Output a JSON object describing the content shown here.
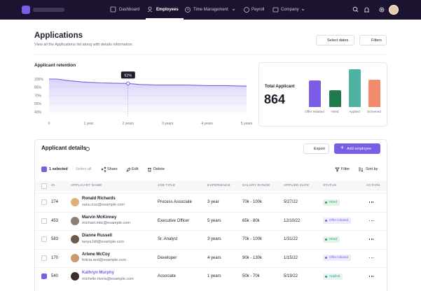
{
  "nav": {
    "items": [
      "Dashboard",
      "Employees",
      "Time Management",
      "Payroll",
      "Company"
    ]
  },
  "header": {
    "title": "Applications",
    "subtitle": "View all the Applications list along with details information.",
    "buttons": [
      "Select dates",
      "Filters"
    ]
  },
  "chart_data": [
    {
      "type": "line",
      "title": "Applicant retention",
      "color": "#7b5ce5",
      "x": [
        0,
        0.2,
        0.5,
        0.8,
        1,
        1.3,
        1.6,
        2,
        2.3,
        2.7,
        3,
        3.5,
        4,
        4.5,
        5
      ],
      "values": [
        100,
        100,
        97,
        95,
        94,
        93,
        92.5,
        92,
        90,
        89,
        89,
        89,
        88,
        88,
        87
      ],
      "xlim": [
        0,
        5
      ],
      "xticks": [
        0,
        {
          "value": 1,
          "label": "1 year"
        },
        {
          "value": 2,
          "label": "2 years"
        },
        {
          "value": 3,
          "label": "3 years"
        },
        {
          "value": 4,
          "label": "4 years"
        },
        {
          "value": 5,
          "label": "5 years"
        }
      ],
      "ylim": [
        40,
        100
      ],
      "yticks": [
        {
          "value": 100,
          "label": "100%"
        },
        {
          "value": 85,
          "label": "85%"
        },
        {
          "value": 70,
          "label": "70%"
        },
        {
          "value": 55,
          "label": "55%"
        },
        {
          "value": 40,
          "label": "40%"
        }
      ],
      "grid": true,
      "annotation": {
        "x": 2,
        "value": 92,
        "label": "92%"
      }
    },
    {
      "type": "bar",
      "title": "Total Applicant",
      "total": 864,
      "categories": [
        "Offer Initiated",
        "Hired",
        "Applied",
        "Screened"
      ],
      "values": [
        212,
        134,
        301,
        217
      ],
      "colors": [
        "#7b5ce5",
        "#1f7a4d",
        "#4fb3a3",
        "#f28b6b"
      ]
    }
  ],
  "table": {
    "title": "Applicant details",
    "buttons": [
      "Export",
      "Add employee"
    ],
    "toolbar": {
      "selected": "1 selected",
      "actions": [
        "Select all",
        "Share",
        "Edit",
        "Delete"
      ],
      "right": [
        "Filter",
        "Sort by"
      ]
    },
    "columns": [
      "ID",
      "APPLICANT NAME",
      "JOB TITLE",
      "EXPERIENCE",
      "SALARY RANGE",
      "APPLIED DATE",
      "STATUS",
      "ACTION"
    ],
    "rows": [
      {
        "id": 274,
        "name": "Ronald Richards",
        "email": "sara.cruz@example.com",
        "job": "Process Associate",
        "experience": "3 year",
        "salary": "70k - 100k",
        "date": "5/27/22",
        "status": "Hired",
        "status_color": "#1f9d55",
        "selected": false
      },
      {
        "id": 453,
        "name": "Marvin McKinney",
        "email": "michael.mitc@example.com",
        "job": "Executive Officer",
        "experience": "5 years",
        "salary": "65k - 80k",
        "date": "12/10/22",
        "status": "Offer initiated",
        "status_color": "#7b5ce5",
        "selected": false
      },
      {
        "id": 583,
        "name": "Dianne Russell",
        "email": "tanya.hill@example.com",
        "job": "Sr. Analyst",
        "experience": "3 years",
        "salary": "70k - 100k",
        "date": "1/31/22",
        "status": "Hired",
        "status_color": "#1f9d55",
        "selected": false
      },
      {
        "id": 170,
        "name": "Arlene McCoy",
        "email": "felicia.reid@example.com",
        "job": "Developer",
        "experience": "4 years",
        "salary": "90k - 130k",
        "date": "1/15/22",
        "status": "Offer initiated",
        "status_color": "#7b5ce5",
        "selected": false
      },
      {
        "id": 540,
        "name": "Kathryn Murphy",
        "email": "michelle.rivera@example.com",
        "job": "Associate",
        "experience": "1 years",
        "salary": "50k - 70k",
        "date": "5/19/22",
        "status": "Applied",
        "status_color": "#2a9d8f",
        "selected": true
      }
    ]
  }
}
